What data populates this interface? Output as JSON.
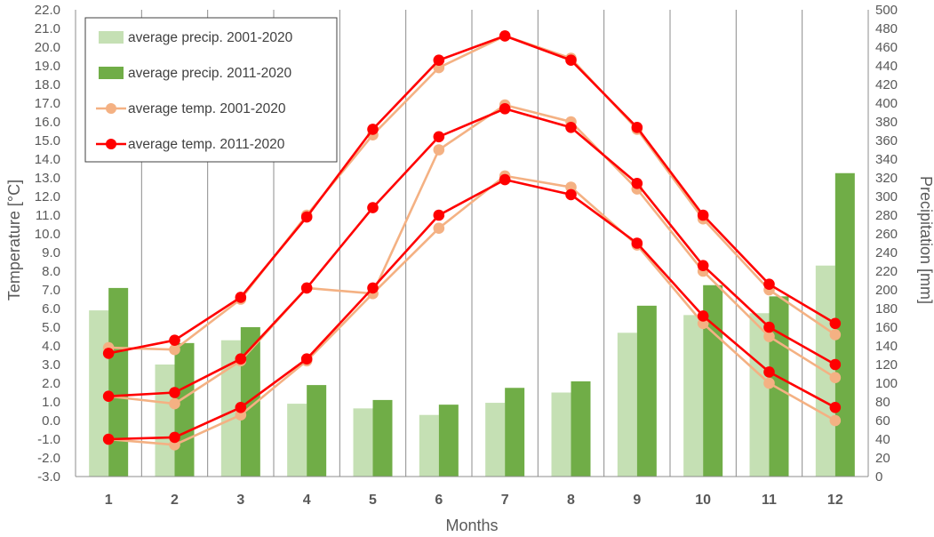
{
  "chart_data": {
    "type": "bar+line",
    "categories": [
      "1",
      "2",
      "3",
      "4",
      "5",
      "6",
      "7",
      "8",
      "9",
      "10",
      "11",
      "12"
    ],
    "xlabel": "Months",
    "ylabel_left": "Temperature [°C]",
    "ylabel_right": "Precipitation [mm]",
    "y_left": {
      "min": -3.0,
      "max": 22.0,
      "step": 1.0
    },
    "y_right": {
      "min": 0,
      "max": 500,
      "step": 20
    },
    "grid": "vertical",
    "legend_position": "top-left",
    "colors": {
      "precip_2001": "#c5e0b4",
      "precip_2011": "#70ad47",
      "temp_2001": "#f4b183",
      "temp_2011": "#ff0000"
    },
    "bars": [
      {
        "name": "average precip. 2001-2020",
        "color": "#c5e0b4",
        "values": [
          178,
          120,
          146,
          78,
          73,
          66,
          79,
          90,
          154,
          173,
          175,
          226
        ]
      },
      {
        "name": "average precip. 2011-2020",
        "color": "#70ad47",
        "values": [
          202,
          143,
          160,
          98,
          82,
          77,
          95,
          102,
          183,
          205,
          193,
          325
        ]
      }
    ],
    "lines": [
      {
        "name": "average temp. 2001-2020",
        "color": "#f4b183",
        "legend": true,
        "values": [
          3.9,
          3.8,
          6.5,
          11.0,
          15.3,
          18.9,
          20.6,
          19.4,
          15.6,
          10.8,
          7.0,
          4.6
        ]
      },
      {
        "name": "average temp. 2011-2020",
        "color": "#ff0000",
        "legend": true,
        "values": [
          3.6,
          4.3,
          6.6,
          10.9,
          15.6,
          19.3,
          20.6,
          19.3,
          15.7,
          11.0,
          7.3,
          5.2
        ]
      },
      {
        "name": "",
        "color": "#f4b183",
        "legend": false,
        "values": [
          1.3,
          0.9,
          3.2,
          7.1,
          6.8,
          14.5,
          16.9,
          16.0,
          12.4,
          8.0,
          4.5,
          2.3
        ]
      },
      {
        "name": "",
        "color": "#ff0000",
        "legend": false,
        "values": [
          1.3,
          1.5,
          3.3,
          7.1,
          11.4,
          15.2,
          16.7,
          15.7,
          12.7,
          8.3,
          5.0,
          3.0
        ]
      },
      {
        "name": "",
        "color": "#f4b183",
        "legend": false,
        "values": [
          -1.0,
          -1.3,
          0.3,
          3.2,
          6.8,
          10.3,
          13.1,
          12.5,
          9.4,
          5.2,
          2.0,
          0.0
        ]
      },
      {
        "name": "",
        "color": "#ff0000",
        "legend": false,
        "values": [
          -1.0,
          -0.9,
          0.7,
          3.3,
          7.1,
          11.0,
          12.9,
          12.1,
          9.5,
          5.6,
          2.6,
          0.7
        ]
      }
    ]
  }
}
